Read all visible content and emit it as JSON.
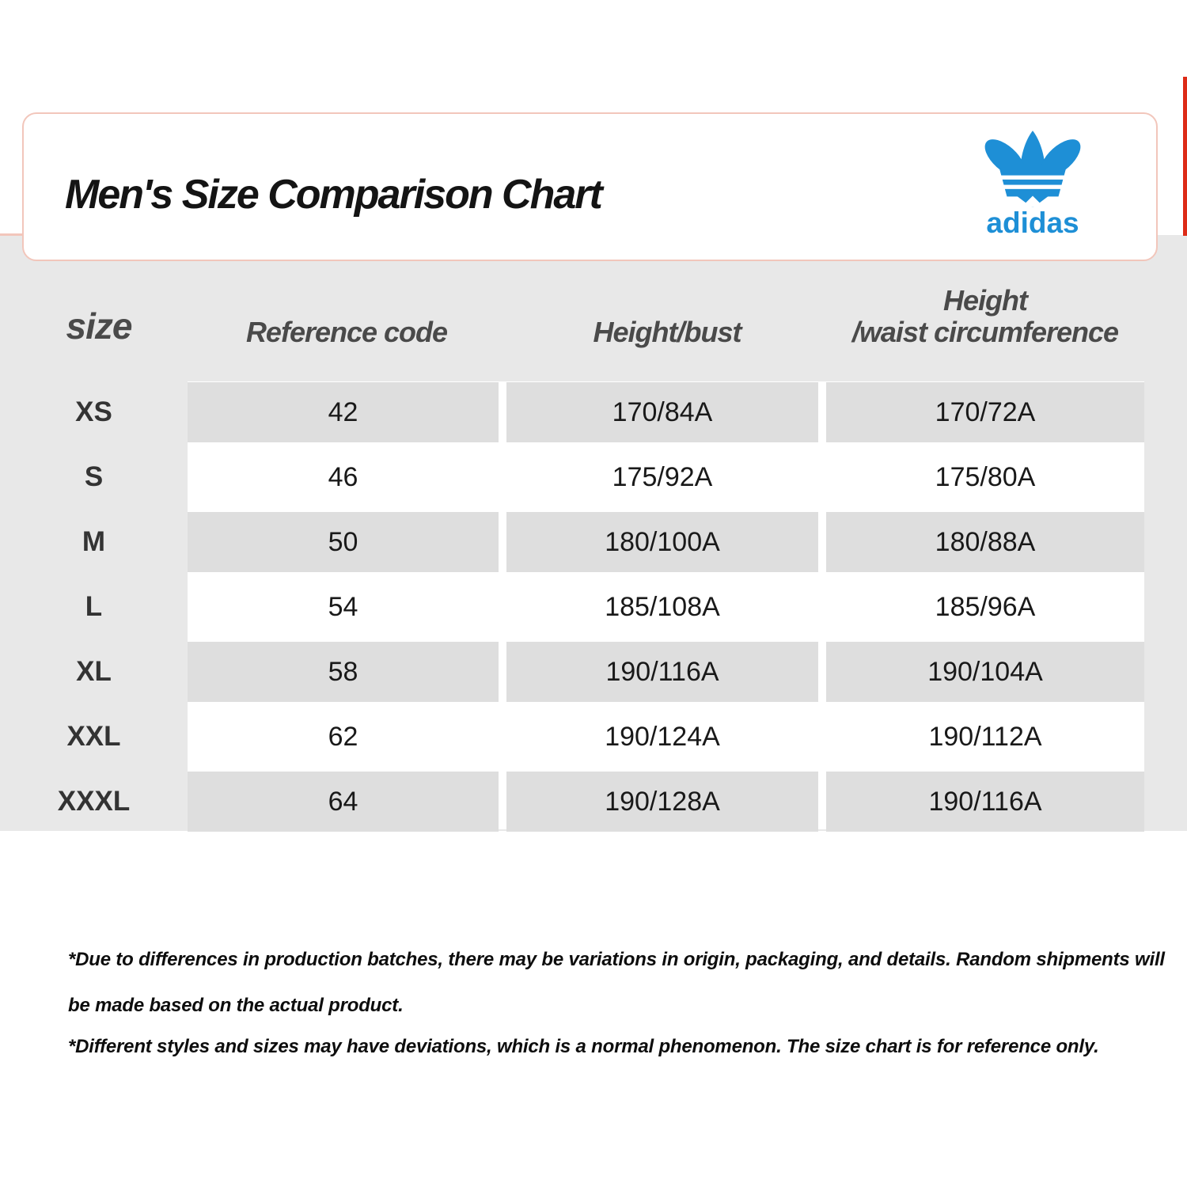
{
  "header_card": {
    "title": "Men's Size Comparison Chart",
    "brand_wordmark": "adidas",
    "brand_logo_icon": "adidas-trefoil-icon"
  },
  "table": {
    "headers": {
      "size": "size",
      "reference_code": "Reference code",
      "height_bust": "Height/bust",
      "height_waist_line1": "Height",
      "height_waist_line2": "/waist circumference"
    }
  },
  "notes": [
    "*Due to differences in production batches, there may be variations in origin, packaging, and details. Random shipments will be made based on the actual product.",
    "*Different styles and sizes may have deviations, which is a normal phenomenon. The size chart is for reference only."
  ],
  "colors": {
    "brand_blue": "#1E8FD6",
    "accent_red": "#DD2B17",
    "card_border_pink": "#F2C6BB",
    "page_gray": "#E8E8E8",
    "cell_gray": "#DEDEDE"
  },
  "chart_data": {
    "type": "table",
    "title": "Men's Size Comparison Chart",
    "columns": [
      "size",
      "Reference code",
      "Height/bust",
      "Height/waist circumference"
    ],
    "rows": [
      [
        "XS",
        "42",
        "170/84A",
        "170/72A"
      ],
      [
        "S",
        "46",
        "175/92A",
        "175/80A"
      ],
      [
        "M",
        "50",
        "180/100A",
        "180/88A"
      ],
      [
        "L",
        "54",
        "185/108A",
        "185/96A"
      ],
      [
        "XL",
        "58",
        "190/116A",
        "190/104A"
      ],
      [
        "XXL",
        "62",
        "190/124A",
        "190/112A"
      ],
      [
        "XXXL",
        "64",
        "190/128A",
        "190/116A"
      ]
    ]
  }
}
